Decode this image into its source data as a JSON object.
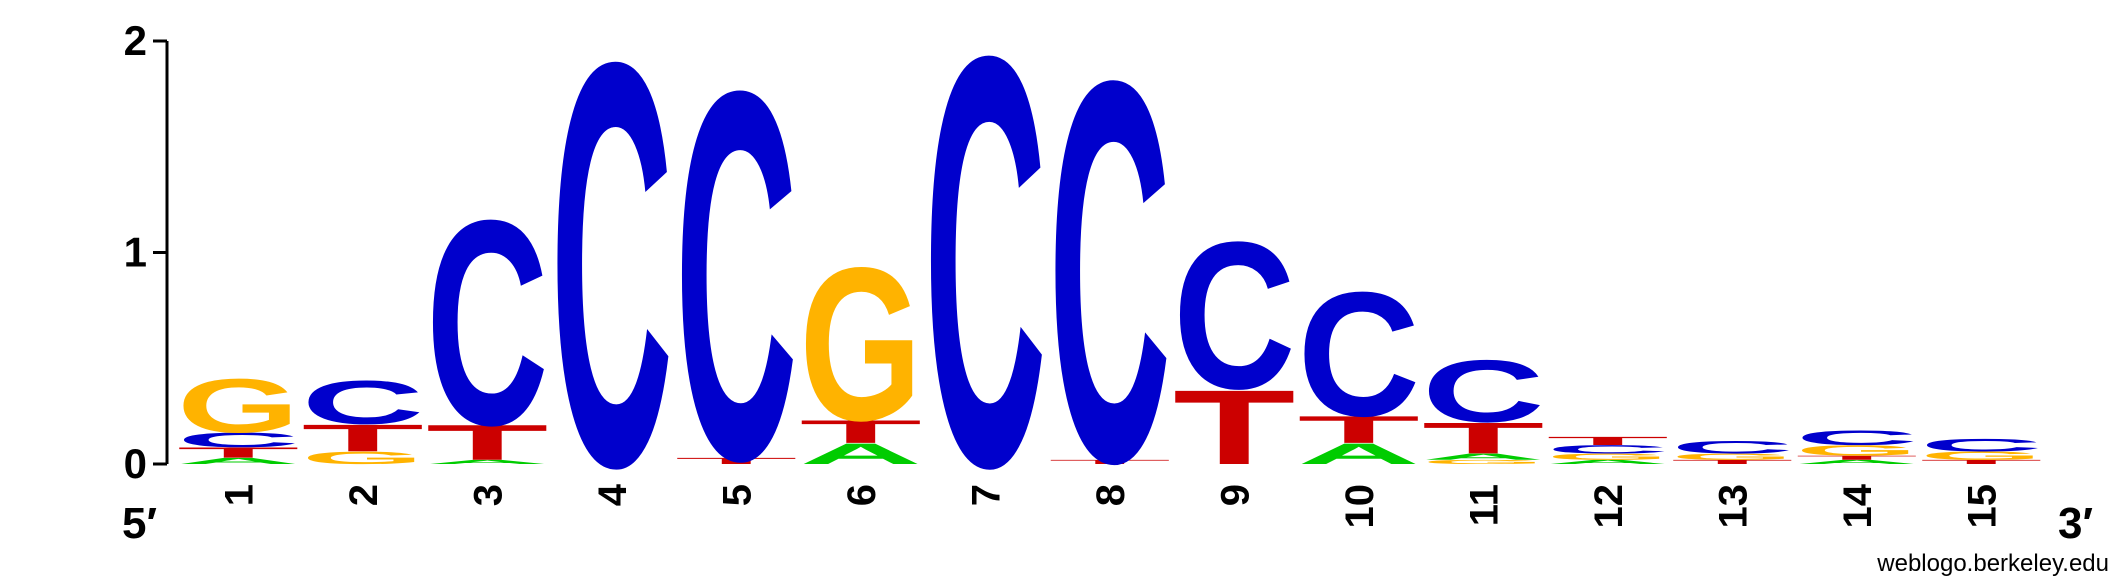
{
  "chart_data": {
    "type": "sequence-logo",
    "ylim": [
      0,
      2
    ],
    "y_ticks": [
      "0",
      "1",
      "2"
    ],
    "five_prime_label": "5′",
    "three_prime_label": "3′",
    "colors": {
      "A": "#00CC00",
      "C": "#0000CC",
      "G": "#FFB300",
      "T": "#CC0000"
    },
    "positions": [
      {
        "label": "1",
        "stack": [
          [
            "A",
            0.03
          ],
          [
            "T",
            0.05
          ],
          [
            "C",
            0.07
          ],
          [
            "G",
            0.26
          ]
        ]
      },
      {
        "label": "2",
        "stack": [
          [
            "G",
            0.06
          ],
          [
            "T",
            0.13
          ],
          [
            "C",
            0.21
          ]
        ]
      },
      {
        "label": "3",
        "stack": [
          [
            "A",
            0.02
          ],
          [
            "T",
            0.17
          ],
          [
            "C",
            0.99
          ]
        ]
      },
      {
        "label": "4",
        "stack": [
          [
            "C",
            1.95
          ]
        ]
      },
      {
        "label": "5",
        "stack": [
          [
            "T",
            0.03
          ],
          [
            "C",
            1.78
          ]
        ]
      },
      {
        "label": "6",
        "stack": [
          [
            "A",
            0.1
          ],
          [
            "T",
            0.11
          ],
          [
            "G",
            0.74
          ]
        ]
      },
      {
        "label": "7",
        "stack": [
          [
            "C",
            1.98
          ]
        ]
      },
      {
        "label": "8",
        "stack": [
          [
            "T",
            0.02
          ],
          [
            "C",
            1.84
          ]
        ]
      },
      {
        "label": "9",
        "stack": [
          [
            "T",
            0.36
          ],
          [
            "C",
            0.71
          ]
        ]
      },
      {
        "label": "10",
        "stack": [
          [
            "A",
            0.1
          ],
          [
            "T",
            0.13
          ],
          [
            "C",
            0.6
          ]
        ]
      },
      {
        "label": "11",
        "stack": [
          [
            "G",
            0.02
          ],
          [
            "A",
            0.03
          ],
          [
            "T",
            0.15
          ],
          [
            "C",
            0.3
          ]
        ]
      },
      {
        "label": "12",
        "stack": [
          [
            "A",
            0.02
          ],
          [
            "G",
            0.03
          ],
          [
            "C",
            0.04
          ],
          [
            "T",
            0.04
          ]
        ]
      },
      {
        "label": "13",
        "stack": [
          [
            "T",
            0.02
          ],
          [
            "G",
            0.03
          ],
          [
            "C",
            0.06
          ]
        ]
      },
      {
        "label": "14",
        "stack": [
          [
            "A",
            0.02
          ],
          [
            "T",
            0.02
          ],
          [
            "G",
            0.05
          ],
          [
            "C",
            0.07
          ]
        ]
      },
      {
        "label": "15",
        "stack": [
          [
            "T",
            0.02
          ],
          [
            "G",
            0.04
          ],
          [
            "C",
            0.06
          ]
        ]
      }
    ]
  },
  "credit": "weblogo.berkeley.edu"
}
